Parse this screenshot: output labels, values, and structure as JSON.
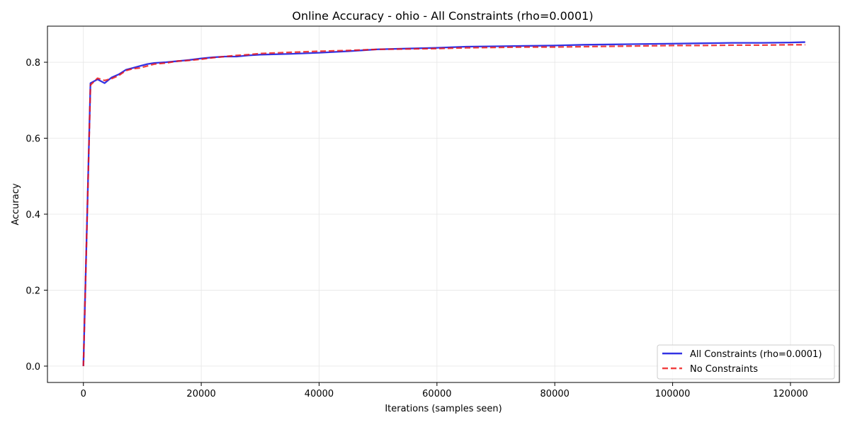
{
  "chart_data": {
    "type": "line",
    "title": "Online Accuracy - ohio - All Constraints (rho=0.0001)",
    "xlabel": "Iterations (samples seen)",
    "ylabel": "Accuracy",
    "xlim": [
      -6100,
      128300
    ],
    "ylim": [
      -0.043,
      0.895
    ],
    "xticks": [
      0,
      20000,
      40000,
      60000,
      80000,
      100000,
      120000
    ],
    "xtick_labels": [
      "0",
      "20000",
      "40000",
      "60000",
      "80000",
      "100000",
      "120000"
    ],
    "yticks": [
      0.0,
      0.2,
      0.4,
      0.6,
      0.8
    ],
    "ytick_labels": [
      "0.0",
      "0.2",
      "0.4",
      "0.6",
      "0.8"
    ],
    "grid": true,
    "legend_position": "bottom-right",
    "series": [
      {
        "name": "All Constraints (rho=0.0001)",
        "color": "#0000dd",
        "linestyle": "solid",
        "points": [
          [
            0,
            0.0
          ],
          [
            1200,
            0.745
          ],
          [
            2400,
            0.755
          ],
          [
            3600,
            0.745
          ],
          [
            4800,
            0.76
          ],
          [
            6000,
            0.768
          ],
          [
            7200,
            0.78
          ],
          [
            8400,
            0.785
          ],
          [
            9600,
            0.79
          ],
          [
            10800,
            0.795
          ],
          [
            12000,
            0.798
          ],
          [
            14000,
            0.8
          ],
          [
            16000,
            0.803
          ],
          [
            18000,
            0.806
          ],
          [
            20000,
            0.81
          ],
          [
            22000,
            0.813
          ],
          [
            24000,
            0.815
          ],
          [
            26000,
            0.815
          ],
          [
            28000,
            0.818
          ],
          [
            30000,
            0.82
          ],
          [
            35000,
            0.822
          ],
          [
            40000,
            0.825
          ],
          [
            45000,
            0.829
          ],
          [
            50000,
            0.834
          ],
          [
            55000,
            0.836
          ],
          [
            60000,
            0.838
          ],
          [
            65000,
            0.841
          ],
          [
            70000,
            0.842
          ],
          [
            75000,
            0.843
          ],
          [
            80000,
            0.844
          ],
          [
            85000,
            0.846
          ],
          [
            90000,
            0.847
          ],
          [
            95000,
            0.848
          ],
          [
            100000,
            0.849
          ],
          [
            105000,
            0.85
          ],
          [
            110000,
            0.851
          ],
          [
            115000,
            0.851
          ],
          [
            120000,
            0.852
          ],
          [
            122500,
            0.853
          ]
        ]
      },
      {
        "name": "No Constraints",
        "color": "#ee1111",
        "linestyle": "dashed",
        "points": [
          [
            0,
            0.0
          ],
          [
            1200,
            0.74
          ],
          [
            2400,
            0.758
          ],
          [
            3600,
            0.752
          ],
          [
            4800,
            0.757
          ],
          [
            6000,
            0.765
          ],
          [
            7200,
            0.778
          ],
          [
            8400,
            0.783
          ],
          [
            9600,
            0.785
          ],
          [
            10800,
            0.79
          ],
          [
            12000,
            0.795
          ],
          [
            14000,
            0.798
          ],
          [
            16000,
            0.803
          ],
          [
            18000,
            0.805
          ],
          [
            20000,
            0.808
          ],
          [
            22000,
            0.812
          ],
          [
            24000,
            0.815
          ],
          [
            26000,
            0.818
          ],
          [
            28000,
            0.82
          ],
          [
            30000,
            0.823
          ],
          [
            35000,
            0.826
          ],
          [
            40000,
            0.829
          ],
          [
            45000,
            0.831
          ],
          [
            50000,
            0.834
          ],
          [
            55000,
            0.835
          ],
          [
            60000,
            0.836
          ],
          [
            65000,
            0.838
          ],
          [
            70000,
            0.839
          ],
          [
            75000,
            0.84
          ],
          [
            80000,
            0.84
          ],
          [
            85000,
            0.841
          ],
          [
            90000,
            0.842
          ],
          [
            95000,
            0.843
          ],
          [
            100000,
            0.844
          ],
          [
            105000,
            0.844
          ],
          [
            110000,
            0.845
          ],
          [
            115000,
            0.845
          ],
          [
            120000,
            0.846
          ],
          [
            122500,
            0.846
          ]
        ]
      }
    ]
  }
}
